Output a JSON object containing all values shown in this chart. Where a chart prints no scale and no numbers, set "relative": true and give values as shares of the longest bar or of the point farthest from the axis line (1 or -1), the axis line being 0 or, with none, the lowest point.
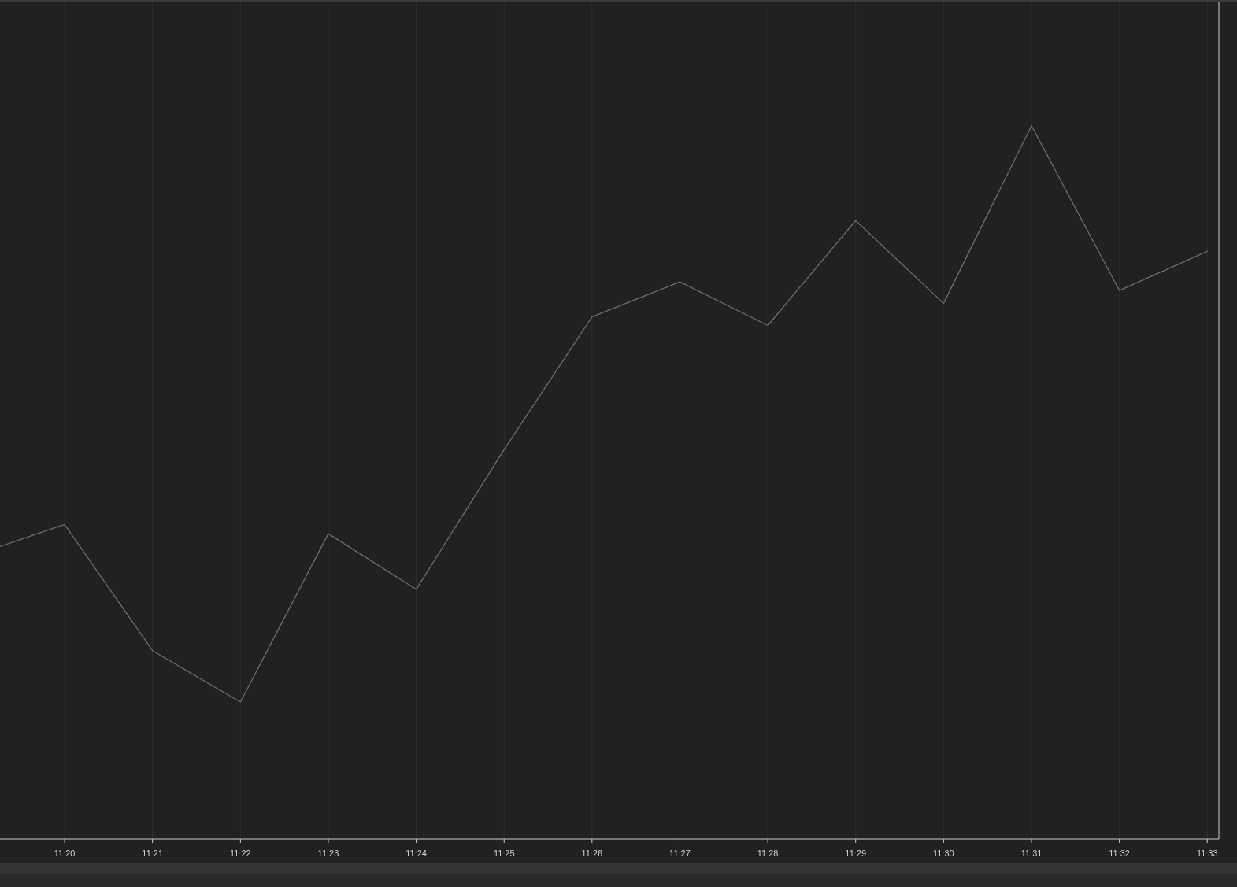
{
  "chart_data": {
    "type": "line",
    "relative": true,
    "x": [
      11.32108,
      11.33333,
      11.35,
      11.36667,
      11.38333,
      11.4,
      11.41667,
      11.43333,
      11.45,
      11.46667,
      11.48333,
      11.5,
      11.51667,
      11.53333,
      11.55
    ],
    "series": [
      {
        "color": "#6e6e6e",
        "values": [
          0.41,
          0.441,
          0.264,
          0.192,
          0.428,
          0.35,
          0.546,
          0.732,
          0.781,
          0.72,
          0.867,
          0.751,
          1,
          0.769,
          0.824
        ]
      }
    ],
    "xlim": [
      11.32108,
      11.5522
    ],
    "xticks": [
      {
        "value": 11.33333,
        "label": "11:20"
      },
      {
        "value": 11.35,
        "label": "11:21"
      },
      {
        "value": 11.36667,
        "label": "11:22"
      },
      {
        "value": 11.38333,
        "label": "11:23"
      },
      {
        "value": 11.4,
        "label": "11:24"
      },
      {
        "value": 11.41667,
        "label": "11:25"
      },
      {
        "value": 11.43333,
        "label": "11:26"
      },
      {
        "value": 11.45,
        "label": "11:27"
      },
      {
        "value": 11.46667,
        "label": "11:28"
      },
      {
        "value": 11.48333,
        "label": "11:29"
      },
      {
        "value": 11.5,
        "label": "11:30"
      },
      {
        "value": 11.51667,
        "label": "11:31"
      },
      {
        "value": 11.53333,
        "label": "11:32"
      },
      {
        "value": 11.55,
        "label": "11:33"
      }
    ],
    "grid": "x",
    "tick_labels": "x",
    "marker": "none",
    "line_style": "solid"
  }
}
